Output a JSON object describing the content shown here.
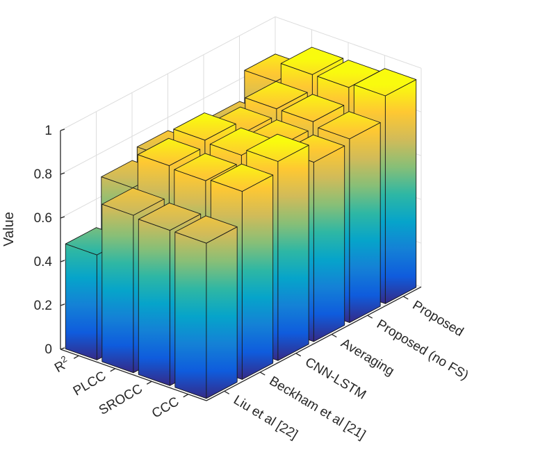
{
  "chart_data": {
    "type": "bar3d",
    "title": "",
    "zlabel": "Value",
    "zlim": [
      0,
      1
    ],
    "z_ticks": [
      "0",
      "0.2",
      "0.4",
      "0.6",
      "0.8",
      "1"
    ],
    "metrics": [
      "CCC",
      "SROCC",
      "PLCC",
      "R²"
    ],
    "metric_tick_labels": [
      {
        "base": "CCC",
        "sup": ""
      },
      {
        "base": "SROCC",
        "sup": ""
      },
      {
        "base": "PLCC",
        "sup": ""
      },
      {
        "base": "R",
        "sup": "2"
      }
    ],
    "methods": [
      "Liu et al [22]",
      "Beckham et al [21]",
      "CNN-LSTM",
      "Averaging",
      "Proposed (no FS)",
      "Proposed"
    ],
    "values": [
      [
        0.71,
        0.86,
        0.91,
        0.82,
        0.84,
        0.95
      ],
      [
        0.71,
        0.85,
        0.88,
        0.83,
        0.86,
        0.93
      ],
      [
        0.72,
        0.86,
        0.89,
        0.83,
        0.86,
        0.93
      ],
      [
        0.48,
        0.7,
        0.75,
        0.6,
        0.71,
        0.84
      ]
    ],
    "colormap": "parula",
    "grid": true
  }
}
